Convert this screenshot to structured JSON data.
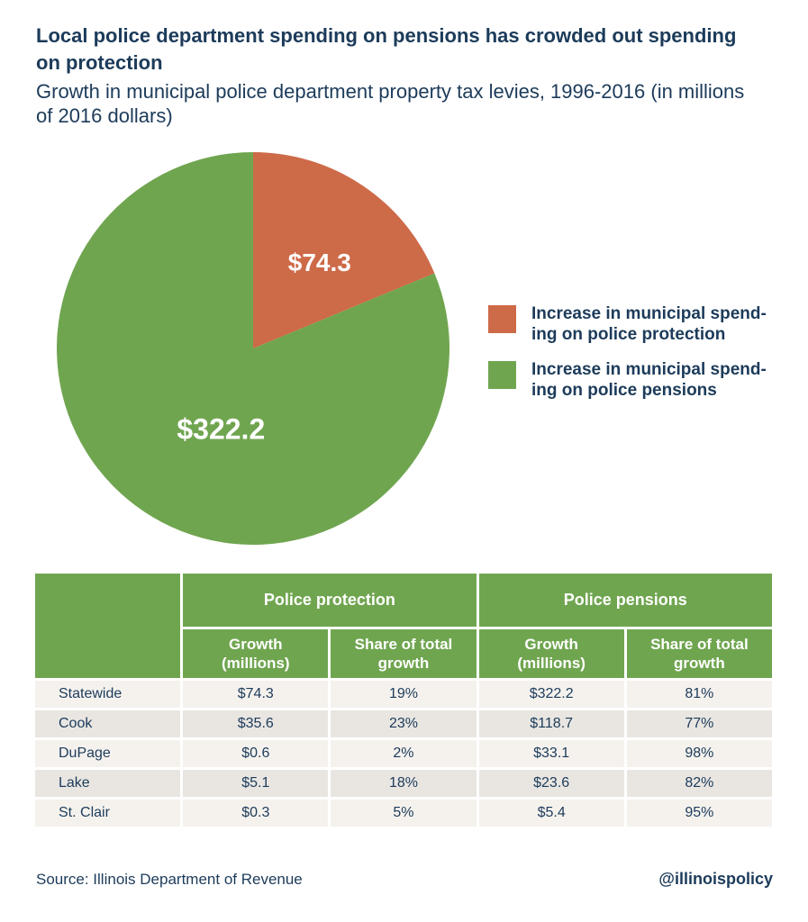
{
  "header": {
    "title_lines": [
      "Local police department spending on pensions has crowded out spending",
      "on protection"
    ],
    "subtitle_lines": [
      "Growth in municipal police department property tax levies, 1996-2016 (in millions",
      "of 2016 dollars)"
    ]
  },
  "colors": {
    "navy": "#1c3b5a",
    "green": "#70a550",
    "orange": "#cd6a48",
    "row_light": "#f5f2ee",
    "row_dark": "#e9e6e2"
  },
  "chart_data": {
    "type": "pie",
    "title": "Growth in municipal police department property tax levies, 1996-2016 (in millions of 2016 dollars)",
    "start_angle": "12 o'clock",
    "direction": "clockwise",
    "slices": [
      {
        "name": "Increase in municipal spending on police protection",
        "value": 74.3,
        "display": "$74.3",
        "share_pct": 19,
        "color": "#cd6a48"
      },
      {
        "name": "Increase in municipal spending on police pensions",
        "value": 322.2,
        "display": "$322.2",
        "share_pct": 81,
        "color": "#70a550"
      }
    ]
  },
  "legend": {
    "items": [
      {
        "lines": [
          "Increase in municipal spend-",
          "ing on police protection"
        ],
        "color": "#cd6a48"
      },
      {
        "lines": [
          "Increase in municipal spend-",
          "ing on police pensions"
        ],
        "color": "#70a550"
      }
    ]
  },
  "table": {
    "group_headers": [
      "Police protection",
      "Police pensions"
    ],
    "sub_headers": [
      "Growth (millions)",
      "Share of total growth",
      "Growth (millions)",
      "Share of total growth"
    ],
    "rows": [
      {
        "name": "Statewide",
        "cells": [
          "$74.3",
          "19%",
          "$322.2",
          "81%"
        ]
      },
      {
        "name": "Cook",
        "cells": [
          "$35.6",
          "23%",
          "$118.7",
          "77%"
        ]
      },
      {
        "name": "DuPage",
        "cells": [
          "$0.6",
          "2%",
          "$33.1",
          "98%"
        ]
      },
      {
        "name": "Lake",
        "cells": [
          "$5.1",
          "18%",
          "$23.6",
          "82%"
        ]
      },
      {
        "name": "St. Clair",
        "cells": [
          "$0.3",
          "5%",
          "$5.4",
          "95%"
        ]
      }
    ]
  },
  "footer": {
    "source": "Source: Illinois Department of Revenue",
    "handle": "@illinoispolicy"
  }
}
